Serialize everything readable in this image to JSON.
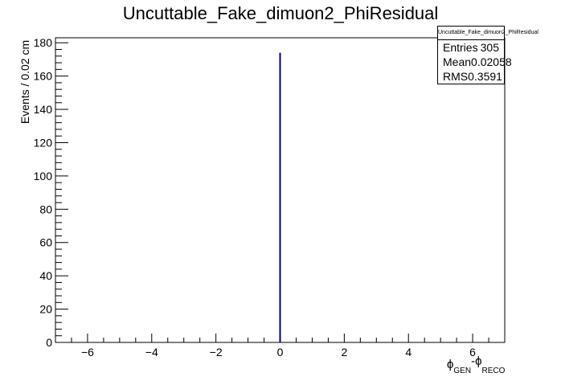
{
  "chart_data": {
    "type": "bar",
    "title": "Uncuttable_Fake_dimuon2_PhiResidual",
    "xlabel_parts": {
      "phi": "ϕ",
      "gen": "GEN",
      "dash": "-",
      "reco": "RECO"
    },
    "ylabel": "Events / 0.02 cm",
    "xlim": [
      -7,
      7
    ],
    "ylim": [
      0,
      183
    ],
    "x_ticks": [
      -6,
      -4,
      -2,
      0,
      2,
      4,
      6
    ],
    "x_tick_labels": [
      "−6",
      "−4",
      "−2",
      "0",
      "2",
      "4",
      "6"
    ],
    "y_ticks": [
      0,
      20,
      40,
      60,
      80,
      100,
      120,
      140,
      160,
      180
    ],
    "y_tick_labels": [
      "0",
      "20",
      "40",
      "60",
      "80",
      "100",
      "120",
      "140",
      "160",
      "180"
    ],
    "bins": [
      {
        "x": 0.0,
        "value": 174
      }
    ],
    "line_color": "#00007f",
    "grid": false,
    "stats": {
      "name": "Uncuttable_Fake_dimuon2_PhiResidual",
      "rows": [
        {
          "label": "Entries",
          "value": "305"
        },
        {
          "label": "Mean",
          "value": "0.02058"
        },
        {
          "label": "RMS",
          "value": "0.3591"
        }
      ]
    }
  }
}
